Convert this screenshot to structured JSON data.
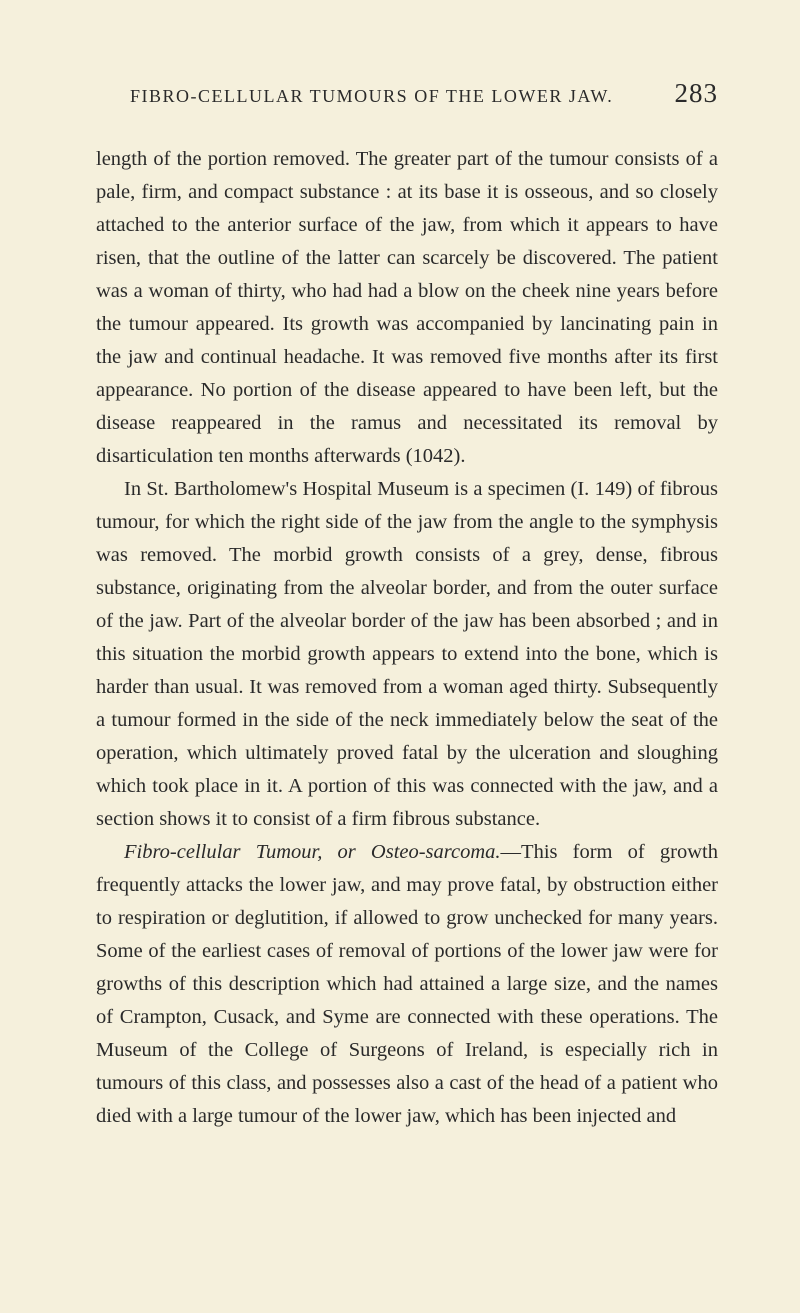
{
  "header": {
    "title": "FIBRO-CELLULAR TUMOURS OF THE LOWER JAW.",
    "pageNumber": "283"
  },
  "paragraphs": {
    "p1": "length of the portion removed. The greater part of the tumour consists of a pale, firm, and compact substance : at its base it is osseous, and so closely attached to the anterior surface of the jaw, from which it appears to have risen, that the outline of the latter can scarcely be discovered. The patient was a woman of thirty, who had had a blow on the cheek nine years before the tumour appeared. Its growth was accompanied by lancinating pain in the jaw and continual headache. It was removed five months after its first appearance. No portion of the disease appeared to have been left, but the disease reappeared in the ramus and necessitated its removal by disarticulation ten months afterwards (1042).",
    "p2": "In St. Bartholomew's Hospital Museum is a specimen (I. 149) of fibrous tumour, for which the right side of the jaw from the angle to the symphysis was removed. The morbid growth consists of a grey, dense, fibrous substance, originating from the alveolar border, and from the outer surface of the jaw. Part of the alveolar border of the jaw has been absorbed ; and in this situation the morbid growth appears to extend into the bone, which is harder than usual. It was removed from a woman aged thirty. Subsequently a tumour formed in the side of the neck immediately below the seat of the operation, which ultimately proved fatal by the ulceration and sloughing which took place in it. A portion of this was connected with the jaw, and a section shows it to consist of a firm fibrous substance.",
    "p3_italic": "Fibro-cellular Tumour, or Osteo-sarcoma.",
    "p3_rest": "—This form of growth frequently attacks the lower jaw, and may prove fatal, by obstruction either to respiration or deglutition, if allowed to grow unchecked for many years. Some of the earliest cases of removal of portions of the lower jaw were for growths of this description which had attained a large size, and the names of Crampton, Cusack, and Syme are connected with these operations. The Museum of the College of Surgeons of Ireland, is especially rich in tumours of this class, and possesses also a cast of the head of a patient who died with a large tumour of the lower jaw, which has been injected and"
  },
  "styling": {
    "background_color": "#f5f0dc",
    "text_color": "#2a2a2a",
    "body_font_size": 20.5,
    "header_font_size": 18,
    "page_number_font_size": 27,
    "line_height": 1.61,
    "font_family": "Georgia, Times New Roman, serif"
  }
}
